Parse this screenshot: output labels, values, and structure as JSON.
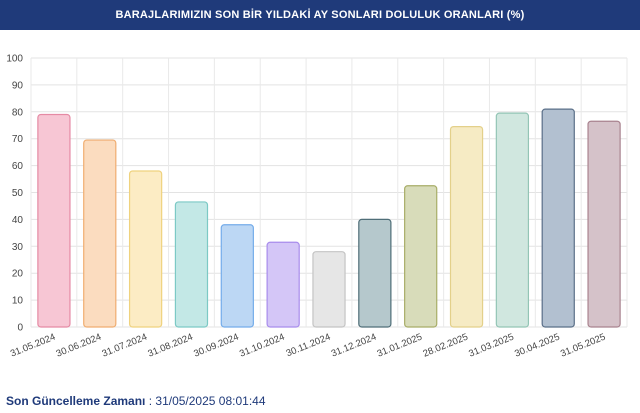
{
  "header": {
    "title": "BARAJLARIMIZIN SON BİR YILDAKİ AY SONLARI DOLULUK ORANLARI (%)"
  },
  "footer": {
    "label": "Son Güncelleme Zamanı",
    "separator": " : ",
    "value": "31/05/2025 08:01:44"
  },
  "chart_data": {
    "type": "bar",
    "title": "BARAJLARIMIZIN SON BİR YILDAKİ AY SONLARI DOLULUK ORANLARI (%)",
    "xlabel": "",
    "ylabel": "",
    "ylim": [
      0,
      100
    ],
    "yticks": [
      0,
      10,
      20,
      30,
      40,
      50,
      60,
      70,
      80,
      90,
      100
    ],
    "grid": true,
    "legend": "none",
    "categories": [
      "31.05.2024",
      "30.06.2024",
      "31.07.2024",
      "31.08.2024",
      "30.09.2024",
      "31.10.2024",
      "30.11.2024",
      "31.12.2024",
      "31.01.2025",
      "28.02.2025",
      "31.03.2025",
      "30.04.2025",
      "31.05.2025"
    ],
    "values": [
      79,
      69.5,
      58,
      46.5,
      38,
      31.5,
      28,
      40,
      52.5,
      74.5,
      79.5,
      81,
      76.5
    ],
    "fill_colors": [
      "#f7c6d4",
      "#fbdcbf",
      "#fcecc4",
      "#c3e8e6",
      "#bcd7f4",
      "#d4c6f7",
      "#e6e6e6",
      "#b5c8cc",
      "#d8dcba",
      "#f6ebc4",
      "#d0e7df",
      "#b2c0d0",
      "#d5c2c9"
    ],
    "stroke_colors": [
      "#e58aa4",
      "#f0ad70",
      "#efd27e",
      "#7cc9c5",
      "#74acea",
      "#a88cec",
      "#c4c4c4",
      "#4f6e78",
      "#a8ad68",
      "#e3d08a",
      "#93c5b5",
      "#5a6f88",
      "#a9838f"
    ]
  }
}
